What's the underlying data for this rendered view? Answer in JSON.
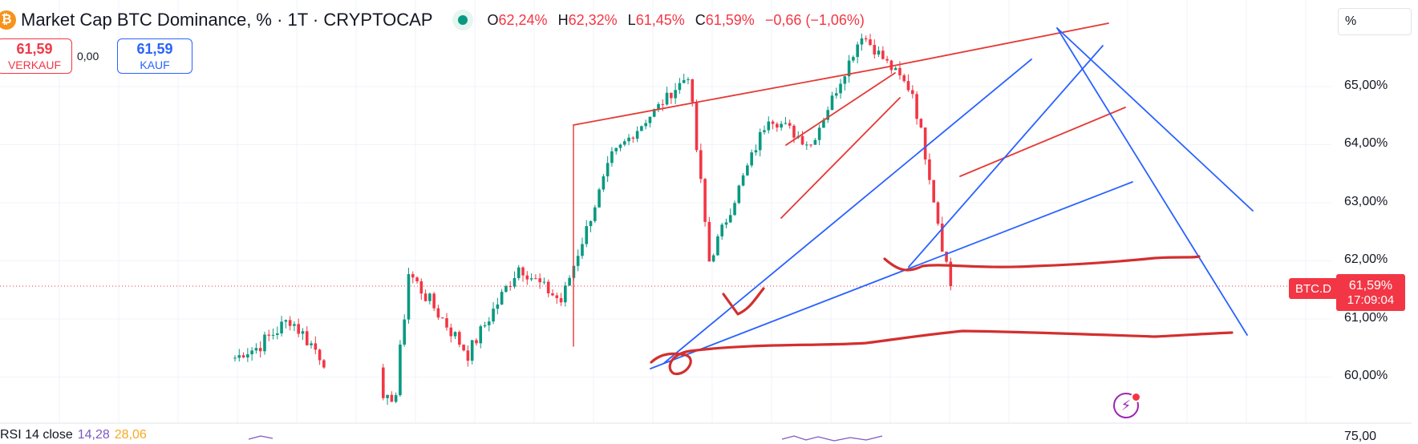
{
  "header": {
    "logo_icon": "bitcoin-logo-icon",
    "title": "Market Cap BTC Dominance, % · 1T · CRYPTOCAP",
    "ohlc": {
      "o_label": "O",
      "o_value": "62,24%",
      "h_label": "H",
      "h_value": "62,32%",
      "l_label": "L",
      "l_value": "61,45%",
      "c_label": "C",
      "c_value": "61,59%",
      "change": "−0,66 (−1,06%)"
    },
    "colors": {
      "down": "#f23645",
      "up": "#089981",
      "blue": "#2962ff"
    }
  },
  "trade": {
    "sell_price": "61,59",
    "sell_label": "VERKAUF",
    "spread": "0,00",
    "buy_price": "61,59",
    "buy_label": "KAUF"
  },
  "scale_mode": "%",
  "price_axis": [
    "65,00%",
    "64,00%",
    "63,00%",
    "62,00%",
    "61,00%",
    "60,00%"
  ],
  "current": {
    "symbol": "BTC.D",
    "price": "61,59%",
    "countdown": "17:09:04"
  },
  "rsi": {
    "label": "RSI 14 close",
    "value1": "14,28",
    "value2": "28,06",
    "axis_value": "75,00"
  },
  "chart_data": {
    "type": "candlestick",
    "title": "Market Cap BTC Dominance, % · 1T · CRYPTOCAP",
    "xlabel": "",
    "ylabel": "",
    "ylim": [
      59.2,
      66.3
    ],
    "grid": true,
    "current_price": 61.59,
    "segments": [
      {
        "from": 60.3,
        "to": 60.5,
        "steps": 6,
        "amp": 0.16
      },
      {
        "from": 60.5,
        "to": 61.0,
        "steps": 8,
        "amp": 0.28
      },
      {
        "from": 61.0,
        "to": 60.3,
        "steps": 8,
        "amp": 0.3
      },
      {
        "from": 59.2,
        "to": 59.2,
        "steps": 13,
        "amp": 0.0
      },
      {
        "from": 59.5,
        "to": 59.7,
        "steps": 4,
        "amp": 0.2
      },
      {
        "from": 59.7,
        "to": 61.8,
        "steps": 3,
        "amp": 0.35
      },
      {
        "from": 61.8,
        "to": 60.4,
        "steps": 14,
        "amp": 0.28
      },
      {
        "from": 60.4,
        "to": 61.9,
        "steps": 12,
        "amp": 0.26
      },
      {
        "from": 61.9,
        "to": 61.3,
        "steps": 10,
        "amp": 0.22
      },
      {
        "from": 61.3,
        "to": 63.8,
        "steps": 12,
        "amp": 0.2
      },
      {
        "from": 63.8,
        "to": 65.2,
        "steps": 18,
        "amp": 0.18
      },
      {
        "from": 65.2,
        "to": 62.0,
        "steps": 5,
        "amp": 0.35
      },
      {
        "from": 62.0,
        "to": 64.5,
        "steps": 14,
        "amp": 0.22
      },
      {
        "from": 64.5,
        "to": 64.0,
        "steps": 10,
        "amp": 0.22
      },
      {
        "from": 64.0,
        "to": 65.9,
        "steps": 12,
        "amp": 0.18
      },
      {
        "from": 65.9,
        "to": 64.9,
        "steps": 12,
        "amp": 0.2
      },
      {
        "from": 64.9,
        "to": 63.5,
        "steps": 4,
        "amp": 0.25
      },
      {
        "from": 63.5,
        "to": 62.3,
        "steps": 3,
        "amp": 0.3
      },
      {
        "from": 62.3,
        "to": 61.59,
        "steps": 2,
        "amp": 0.4
      }
    ]
  }
}
